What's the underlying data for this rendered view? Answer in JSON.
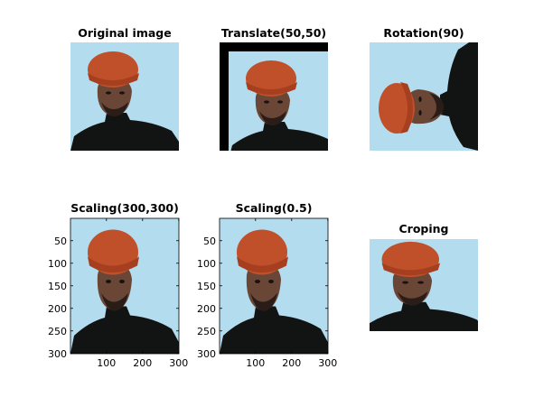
{
  "panels": [
    {
      "title": "Original image"
    },
    {
      "title": "Translate(50,50)"
    },
    {
      "title": "Rotation(90)"
    },
    {
      "title": "Scaling(300,300)",
      "xlim": [
        0.5,
        300.5
      ],
      "ylim": [
        0.5,
        300.5
      ],
      "xticks": [
        100,
        200,
        300
      ],
      "yticks": [
        50,
        100,
        150,
        200,
        250,
        300
      ]
    },
    {
      "title": "Scaling(0.5)",
      "xlim": [
        0.5,
        300.5
      ],
      "ylim": [
        0.5,
        300.5
      ],
      "xticks": [
        100,
        200,
        300
      ],
      "yticks": [
        50,
        100,
        150,
        200,
        250,
        300
      ]
    },
    {
      "title": "Croping"
    }
  ]
}
